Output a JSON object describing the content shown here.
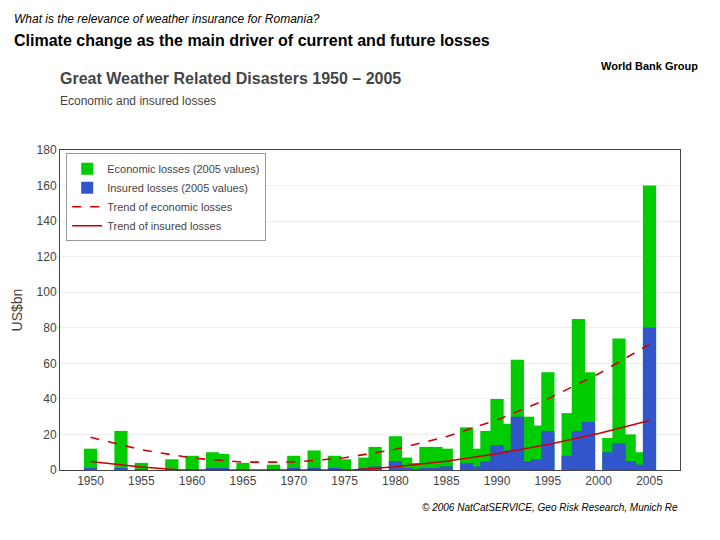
{
  "chart_data": {
    "type": "bar",
    "title": "Great Weather Related Disasters 1950 – 2005",
    "subtitle": "Economic and insured losses",
    "ylabel": "US$bn",
    "annotations": [
      "What is the relevance of weather insurance for Romania?",
      "Climate change as the main driver of current and future losses",
      "World Bank Group",
      "© 2006 NatCatSERVICE, Geo Risk Research, Munich Re"
    ],
    "x": [
      1950,
      1953,
      1955,
      1958,
      1960,
      1962,
      1963,
      1965,
      1968,
      1970,
      1972,
      1974,
      1975,
      1977,
      1978,
      1980,
      1981,
      1982,
      1983,
      1984,
      1985,
      1987,
      1988,
      1989,
      1990,
      1991,
      1992,
      1993,
      1994,
      1995,
      1997,
      1998,
      1999,
      2001,
      2002,
      2003,
      2004,
      2005
    ],
    "series": [
      {
        "name": "Economic losses (2005 values)",
        "type": "bar",
        "color": "#00cc00",
        "values": [
          12,
          22,
          4,
          6,
          8,
          10,
          9,
          4,
          3,
          8,
          11,
          8,
          6,
          7,
          13,
          19,
          7,
          4,
          13,
          13,
          12,
          24,
          12,
          22,
          40,
          26,
          62,
          30,
          25,
          55,
          32,
          85,
          55,
          18,
          74,
          20,
          10,
          160
        ]
      },
      {
        "name": "Insured losses (2005 values)",
        "type": "bar",
        "color": "#3355cc",
        "values": [
          1,
          1,
          0.5,
          0.5,
          0.5,
          1,
          1,
          0.5,
          0.5,
          1,
          1,
          1,
          0.5,
          1,
          2,
          5,
          1,
          0.5,
          1,
          1,
          2,
          4,
          2,
          5,
          14,
          11,
          30,
          5,
          6,
          22,
          8,
          22,
          27,
          10,
          15,
          5,
          3,
          80
        ]
      },
      {
        "name": "Trend of economic losses",
        "type": "line",
        "color": "#cc0000",
        "line_style": "dashed",
        "x": [
          1950,
          1955,
          1960,
          1965,
          1970,
          1975,
          1980,
          1985,
          1990,
          1995,
          2000,
          2005
        ],
        "values": [
          18.4,
          11.39,
          6.73,
          4.42,
          4.47,
          6.87,
          11.62,
          18.73,
          28.19,
          40.0,
          54.17,
          70.69
        ]
      },
      {
        "name": "Trend of insured losses",
        "type": "line",
        "color": "#cc0000",
        "line_style": "solid",
        "x": [
          1950,
          1955,
          1958.9,
          1975.8,
          1980,
          1985,
          1990,
          1995,
          2000,
          2005
        ],
        "values": [
          4.75,
          1.68,
          0,
          0,
          1.84,
          4.96,
          9.13,
          14.32,
          20.55,
          27.81
        ]
      }
    ],
    "xlim": [
      1947,
      2008
    ],
    "xticks": [
      1950,
      1955,
      1960,
      1965,
      1970,
      1975,
      1980,
      1985,
      1990,
      1995,
      2000,
      2005
    ],
    "ylim": [
      0,
      180
    ],
    "yticks": [
      0,
      20,
      40,
      60,
      80,
      100,
      120,
      140,
      160,
      180
    ],
    "grid": true,
    "legend": "upper left",
    "stacked": false
  }
}
